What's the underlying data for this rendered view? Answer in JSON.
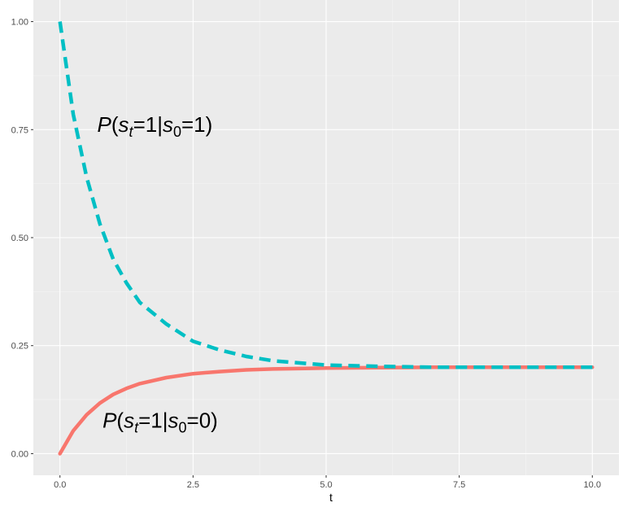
{
  "chart_data": {
    "type": "line",
    "xlabel": "t",
    "ylabel": "",
    "xlim": [
      -0.5,
      10.5
    ],
    "ylim": [
      -0.05,
      1.05
    ],
    "x_ticks": [
      0,
      2.5,
      5,
      7.5,
      10
    ],
    "x_tick_labels": [
      "0.0",
      "2.5",
      "5.0",
      "7.5",
      "10.0"
    ],
    "y_ticks": [
      0,
      0.25,
      0.5,
      0.75,
      1
    ],
    "y_tick_labels": [
      "0.00",
      "0.25",
      "0.50",
      "0.75",
      "1.00"
    ],
    "grid": true,
    "legend": "none",
    "series": [
      {
        "color": "#F8766D",
        "dash": "solid",
        "label_position": {
          "x": 0.8,
          "y": 0.06
        },
        "x": [
          0,
          0.25,
          0.5,
          0.75,
          1,
          1.25,
          1.5,
          2,
          2.5,
          3,
          3.5,
          4,
          5,
          6,
          7,
          8,
          9,
          10
        ],
        "values": [
          0,
          0.053,
          0.09,
          0.117,
          0.137,
          0.151,
          0.162,
          0.176,
          0.185,
          0.19,
          0.194,
          0.196,
          0.198,
          0.199,
          0.2,
          0.2,
          0.2,
          0.2
        ]
      },
      {
        "color": "#00BFC4",
        "dash": "dashed",
        "label_position": {
          "x": 0.7,
          "y": 0.745
        },
        "x": [
          0,
          0.25,
          0.5,
          0.75,
          1,
          1.25,
          1.5,
          2,
          2.5,
          3,
          3.5,
          4,
          5,
          6,
          7,
          8,
          9,
          10
        ],
        "values": [
          1,
          0.785,
          0.64,
          0.532,
          0.45,
          0.395,
          0.35,
          0.3,
          0.26,
          0.24,
          0.225,
          0.215,
          0.205,
          0.202,
          0.2,
          0.2,
          0.2,
          0.2
        ]
      }
    ]
  }
}
